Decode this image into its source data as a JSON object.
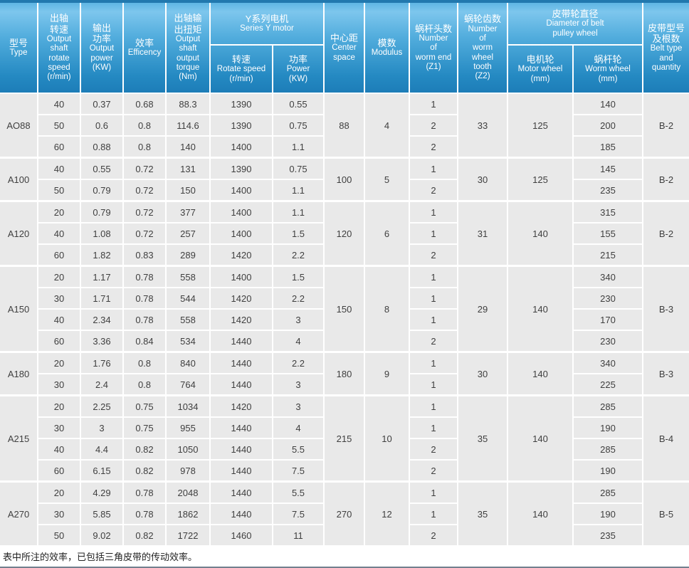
{
  "colors": {
    "header_gradient_top": "#7dc6ed",
    "header_gradient_bottom": "#1d7db8",
    "top_border": "#2178ae",
    "cell_bg": "#e9e9e9",
    "header_text": "#ffffff"
  },
  "table": {
    "header": {
      "type": {
        "zh": "型号",
        "en": "Type"
      },
      "output_speed": {
        "zh": "出轴\n转速",
        "en": "Output\nshaft\nrotate\nspeed\n(r/min)"
      },
      "output_power": {
        "zh": "输出\n功率",
        "en": "Output\npower\n(KW)"
      },
      "efficiency": {
        "zh": "效率",
        "en": "Efficency"
      },
      "torque": {
        "zh": "出轴输\n出扭矩",
        "en": "Output\nshaft\noutput\ntorque\n(Nm)"
      },
      "motor_group": {
        "zh": "Y系列电机",
        "en": "Series Y motor"
      },
      "motor_speed": {
        "zh": "转速",
        "en": "Rotate speed\n(r/min)"
      },
      "motor_power": {
        "zh": "功率",
        "en": "Power\n(KW)"
      },
      "center_space": {
        "zh": "中心距",
        "en": "Center\nspace"
      },
      "modulus": {
        "zh": "模数",
        "en": "Modulus"
      },
      "z1": {
        "zh": "蜗杆头数",
        "en": "Number\nof\nworm end\n(Z1)"
      },
      "z2": {
        "zh": "蜗轮齿数",
        "en": "Number\nof\nworm\nwheel\ntooth\n(Z2)"
      },
      "pulley_group": {
        "zh": "皮带轮直径",
        "en": "Diameter of belt\npulley wheel"
      },
      "motor_wheel": {
        "zh": "电机轮",
        "en": "Motor wheel\n(mm)"
      },
      "worm_wheel": {
        "zh": "蜗杆轮",
        "en": "Worm wheel\n(mm)"
      },
      "belt": {
        "zh": "皮带型号\n及根数",
        "en": "Belt type\nand\nquantity"
      }
    },
    "groups": [
      {
        "type": "AO88",
        "center_space": "88",
        "modulus": "4",
        "z2": "33",
        "motor_wheel": "125",
        "belt": "B-2",
        "rows": [
          {
            "speed": "40",
            "power": "0.37",
            "eff": "0.68",
            "torque": "88.3",
            "motor_speed": "1390",
            "motor_power": "0.55",
            "z1": "1",
            "worm_wheel": "140"
          },
          {
            "speed": "50",
            "power": "0.6",
            "eff": "0.8",
            "torque": "114.6",
            "motor_speed": "1390",
            "motor_power": "0.75",
            "z1": "2",
            "worm_wheel": "200"
          },
          {
            "speed": "60",
            "power": "0.88",
            "eff": "0.8",
            "torque": "140",
            "motor_speed": "1400",
            "motor_power": "1.1",
            "z1": "2",
            "worm_wheel": "185"
          }
        ]
      },
      {
        "type": "A100",
        "center_space": "100",
        "modulus": "5",
        "z2": "30",
        "motor_wheel": "125",
        "belt": "B-2",
        "rows": [
          {
            "speed": "40",
            "power": "0.55",
            "eff": "0.72",
            "torque": "131",
            "motor_speed": "1390",
            "motor_power": "0.75",
            "z1": "1",
            "worm_wheel": "145"
          },
          {
            "speed": "50",
            "power": "0.79",
            "eff": "0.72",
            "torque": "150",
            "motor_speed": "1400",
            "motor_power": "1.1",
            "z1": "2",
            "worm_wheel": "235"
          }
        ]
      },
      {
        "type": "A120",
        "center_space": "120",
        "modulus": "6",
        "z2": "31",
        "motor_wheel": "140",
        "belt": "B-2",
        "rows": [
          {
            "speed": "20",
            "power": "0.79",
            "eff": "0.72",
            "torque": "377",
            "motor_speed": "1400",
            "motor_power": "1.1",
            "z1": "1",
            "worm_wheel": "315"
          },
          {
            "speed": "40",
            "power": "1.08",
            "eff": "0.72",
            "torque": "257",
            "motor_speed": "1400",
            "motor_power": "1.5",
            "z1": "1",
            "worm_wheel": "155"
          },
          {
            "speed": "60",
            "power": "1.82",
            "eff": "0.83",
            "torque": "289",
            "motor_speed": "1420",
            "motor_power": "2.2",
            "z1": "2",
            "worm_wheel": "215"
          }
        ]
      },
      {
        "type": "A150",
        "center_space": "150",
        "modulus": "8",
        "z2": "29",
        "motor_wheel": "140",
        "belt": "B-3",
        "rows": [
          {
            "speed": "20",
            "power": "1.17",
            "eff": "0.78",
            "torque": "558",
            "motor_speed": "1400",
            "motor_power": "1.5",
            "z1": "1",
            "worm_wheel": "340"
          },
          {
            "speed": "30",
            "power": "1.71",
            "eff": "0.78",
            "torque": "544",
            "motor_speed": "1420",
            "motor_power": "2.2",
            "z1": "1",
            "worm_wheel": "230"
          },
          {
            "speed": "40",
            "power": "2.34",
            "eff": "0.78",
            "torque": "558",
            "motor_speed": "1420",
            "motor_power": "3",
            "z1": "1",
            "worm_wheel": "170"
          },
          {
            "speed": "60",
            "power": "3.36",
            "eff": "0.84",
            "torque": "534",
            "motor_speed": "1440",
            "motor_power": "4",
            "z1": "2",
            "worm_wheel": "230"
          }
        ]
      },
      {
        "type": "A180",
        "center_space": "180",
        "modulus": "9",
        "z2": "30",
        "motor_wheel": "140",
        "belt": "B-3",
        "rows": [
          {
            "speed": "20",
            "power": "1.76",
            "eff": "0.8",
            "torque": "840",
            "motor_speed": "1440",
            "motor_power": "2.2",
            "z1": "1",
            "worm_wheel": "340"
          },
          {
            "speed": "30",
            "power": "2.4",
            "eff": "0.8",
            "torque": "764",
            "motor_speed": "1440",
            "motor_power": "3",
            "z1": "1",
            "worm_wheel": "225"
          }
        ]
      },
      {
        "type": "A215",
        "center_space": "215",
        "modulus": "10",
        "z2": "35",
        "motor_wheel": "140",
        "belt": "B-4",
        "rows": [
          {
            "speed": "20",
            "power": "2.25",
            "eff": "0.75",
            "torque": "1034",
            "motor_speed": "1420",
            "motor_power": "3",
            "z1": "1",
            "worm_wheel": "285"
          },
          {
            "speed": "30",
            "power": "3",
            "eff": "0.75",
            "torque": "955",
            "motor_speed": "1440",
            "motor_power": "4",
            "z1": "1",
            "worm_wheel": "190"
          },
          {
            "speed": "40",
            "power": "4.4",
            "eff": "0.82",
            "torque": "1050",
            "motor_speed": "1440",
            "motor_power": "5.5",
            "z1": "2",
            "worm_wheel": "285"
          },
          {
            "speed": "60",
            "power": "6.15",
            "eff": "0.82",
            "torque": "978",
            "motor_speed": "1440",
            "motor_power": "7.5",
            "z1": "2",
            "worm_wheel": "190"
          }
        ]
      },
      {
        "type": "A270",
        "center_space": "270",
        "modulus": "12",
        "z2": "35",
        "motor_wheel": "140",
        "belt": "B-5",
        "rows": [
          {
            "speed": "20",
            "power": "4.29",
            "eff": "0.78",
            "torque": "2048",
            "motor_speed": "1440",
            "motor_power": "5.5",
            "z1": "1",
            "worm_wheel": "285"
          },
          {
            "speed": "30",
            "power": "5.85",
            "eff": "0.78",
            "torque": "1862",
            "motor_speed": "1440",
            "motor_power": "7.5",
            "z1": "1",
            "worm_wheel": "190"
          },
          {
            "speed": "50",
            "power": "9.02",
            "eff": "0.82",
            "torque": "1722",
            "motor_speed": "1460",
            "motor_power": "11",
            "z1": "2",
            "worm_wheel": "235"
          }
        ]
      }
    ]
  },
  "footer_note": "表中所注的效率，已包括三角皮带的传动效率。"
}
